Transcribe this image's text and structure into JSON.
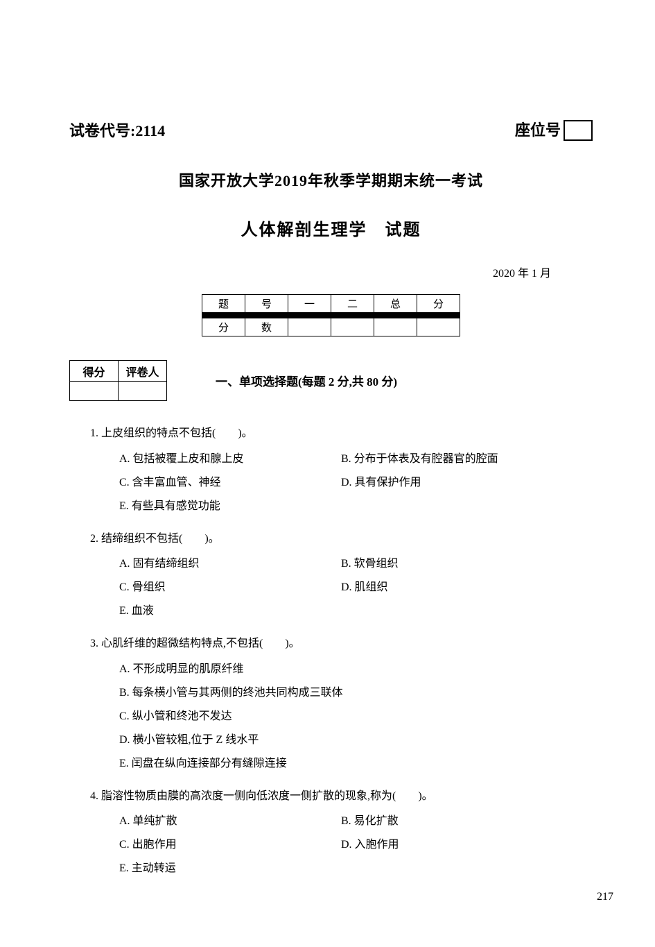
{
  "header": {
    "paper_code_label": "试卷代号:",
    "paper_code": "2114",
    "seat_label": "座位号",
    "seat_box": "　"
  },
  "titles": {
    "university_line": "国家开放大学2019年秋季学期期末统一考试",
    "subject": "人体解剖生理学",
    "subject_suffix": "试题",
    "date": "2020 年 1 月"
  },
  "score_table": {
    "h1": "题",
    "h2": "号",
    "c1": "一",
    "c2": "二",
    "c3": "总",
    "c4": "分",
    "r2a": "分",
    "r2b": "数"
  },
  "scorer": {
    "a": "得分",
    "b": "评卷人"
  },
  "section": {
    "title": "一、单项选择题(每题 2 分,共 80 分)"
  },
  "q1": {
    "stem": "1. 上皮组织的特点不包括(　　)。",
    "A": "A. 包括被覆上皮和腺上皮",
    "B": "B. 分布于体表及有腔器官的腔面",
    "C": "C. 含丰富血管、神经",
    "D": "D. 具有保护作用",
    "E": "E. 有些具有感觉功能"
  },
  "q2": {
    "stem": "2. 结缔组织不包括(　　)。",
    "A": "A. 固有结缔组织",
    "B": "B. 软骨组织",
    "C": "C. 骨组织",
    "D": "D. 肌组织",
    "E": "E. 血液"
  },
  "q3": {
    "stem": "3. 心肌纤维的超微结构特点,不包括(　　)。",
    "A": "A. 不形成明显的肌原纤维",
    "B": "B. 每条横小管与其两侧的终池共同构成三联体",
    "C": "C. 纵小管和终池不发达",
    "D": "D. 横小管较粗,位于 Z 线水平",
    "E": "E. 闰盘在纵向连接部分有缝隙连接"
  },
  "q4": {
    "stem": "4. 脂溶性物质由膜的高浓度一侧向低浓度一侧扩散的现象,称为(　　)。",
    "A": "A. 单纯扩散",
    "B": "B. 易化扩散",
    "C": "C. 出胞作用",
    "D": "D. 入胞作用",
    "E": "E. 主动转运"
  },
  "page_number": "217"
}
